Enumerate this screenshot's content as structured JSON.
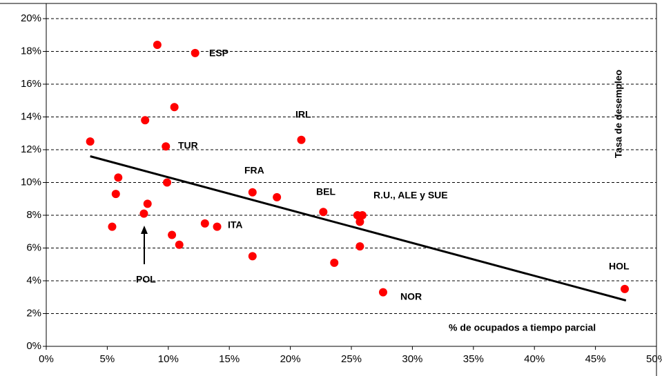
{
  "chart_data": {
    "type": "scatter",
    "x_label": "% de ocupados a tiempo parcial",
    "y_label": "Tasa de desempleo",
    "color": "#ff0000",
    "x": [
      9.1,
      12.2,
      10.5,
      8.1,
      3.6,
      9.8,
      20.9,
      5.9,
      9.9,
      5.7,
      16.9,
      18.9,
      8.3,
      22.7,
      8.0,
      25.5,
      25.9,
      25.7,
      5.4,
      13.0,
      14.0,
      10.3,
      10.9,
      25.7,
      16.9,
      23.6,
      27.6,
      47.4
    ],
    "values": [
      18.4,
      17.9,
      14.6,
      13.8,
      12.5,
      12.2,
      12.6,
      10.3,
      10.0,
      9.3,
      9.4,
      9.1,
      8.7,
      8.2,
      8.1,
      8.0,
      8.0,
      7.6,
      7.3,
      7.5,
      7.3,
      6.8,
      6.2,
      6.1,
      5.5,
      5.1,
      3.3,
      3.5
    ],
    "trendline": {
      "color": "#000000",
      "x": [
        3.6,
        47.5
      ],
      "values": [
        11.6,
        2.8
      ]
    },
    "annotations": [
      "ESP",
      "IRL",
      "TUR",
      "FRA",
      "BEL",
      "R.U., ALE y SUE",
      "ITA",
      "POL",
      "HOL",
      "NOR"
    ],
    "xlim": [
      0,
      50
    ],
    "xticks": [
      {
        "value": 0,
        "label": "0%"
      },
      {
        "value": 5,
        "label": "5%"
      },
      {
        "value": 10,
        "label": "10%"
      },
      {
        "value": 15,
        "label": "15%"
      },
      {
        "value": 20,
        "label": "20%"
      },
      {
        "value": 25,
        "label": "25%"
      },
      {
        "value": 30,
        "label": "30%"
      },
      {
        "value": 35,
        "label": "35%"
      },
      {
        "value": 40,
        "label": "40%"
      },
      {
        "value": 45,
        "label": "45%"
      },
      {
        "value": 50,
        "label": "50%"
      }
    ],
    "ylim": [
      0,
      20
    ],
    "yticks": [
      {
        "value": 0,
        "label": "0%"
      },
      {
        "value": 2,
        "label": "2%"
      },
      {
        "value": 4,
        "label": "4%"
      },
      {
        "value": 6,
        "label": "6%"
      },
      {
        "value": 8,
        "label": "8%"
      },
      {
        "value": 10,
        "label": "10%"
      },
      {
        "value": 12,
        "label": "12%"
      },
      {
        "value": 14,
        "label": "14%"
      },
      {
        "value": 16,
        "label": "16%"
      },
      {
        "value": 18,
        "label": "18%"
      },
      {
        "value": 20,
        "label": "20%"
      }
    ],
    "grid": true
  }
}
